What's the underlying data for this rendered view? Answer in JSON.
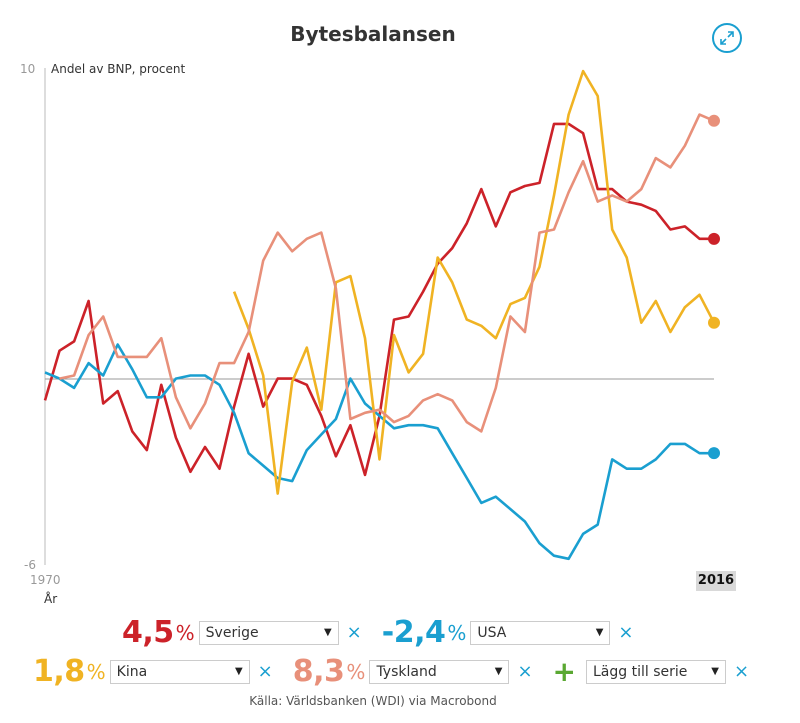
{
  "header": {
    "title": "Bytesbalansen",
    "expand_icon": "expand-arrows-icon"
  },
  "chart_data": {
    "type": "line",
    "title": "Bytesbalansen",
    "ylabel": "Andel av BNP, procent",
    "xlabel": "År",
    "ylim": [
      -6,
      10
    ],
    "xlim": [
      1970,
      2016
    ],
    "y_tick_labels": [
      "10",
      "-6"
    ],
    "x_tick_labels": [
      "1970",
      "2016"
    ],
    "x": [
      1970,
      1971,
      1972,
      1973,
      1974,
      1975,
      1976,
      1977,
      1978,
      1979,
      1980,
      1981,
      1982,
      1983,
      1984,
      1985,
      1986,
      1987,
      1988,
      1989,
      1990,
      1991,
      1992,
      1993,
      1994,
      1995,
      1996,
      1997,
      1998,
      1999,
      2000,
      2001,
      2002,
      2003,
      2004,
      2005,
      2006,
      2007,
      2008,
      2009,
      2010,
      2011,
      2012,
      2013,
      2014,
      2015,
      2016
    ],
    "series": [
      {
        "name": "Sverige",
        "color": "#cc2229",
        "values": [
          -0.7,
          0.9,
          1.2,
          2.5,
          -0.8,
          -0.4,
          -1.7,
          -2.3,
          -0.2,
          -1.9,
          -3.0,
          -2.2,
          -2.9,
          -0.9,
          0.8,
          -0.9,
          0.0,
          0.0,
          -0.2,
          -1.2,
          -2.5,
          -1.5,
          -3.1,
          -1.2,
          1.9,
          2.0,
          2.8,
          3.7,
          4.2,
          5.0,
          6.1,
          4.9,
          6.0,
          6.2,
          6.3,
          8.2,
          8.2,
          7.9,
          6.1,
          6.1,
          5.7,
          5.6,
          5.4,
          4.8,
          4.9,
          4.5,
          4.5
        ]
      },
      {
        "name": "USA",
        "color": "#1a9fd0",
        "values": [
          0.2,
          0.0,
          -0.3,
          0.5,
          0.1,
          1.1,
          0.3,
          -0.6,
          -0.6,
          0.0,
          0.1,
          0.1,
          -0.2,
          -1.1,
          -2.4,
          -2.8,
          -3.2,
          -3.3,
          -2.3,
          -1.8,
          -1.3,
          0.0,
          -0.8,
          -1.2,
          -1.6,
          -1.5,
          -1.5,
          -1.6,
          -2.4,
          -3.2,
          -4.0,
          -3.8,
          -4.2,
          -4.6,
          -5.3,
          -5.7,
          -5.8,
          -5.0,
          -4.7,
          -2.6,
          -2.9,
          -2.9,
          -2.6,
          -2.1,
          -2.1,
          -2.4,
          -2.4
        ]
      },
      {
        "name": "Kina",
        "color": "#f0b323",
        "values": [
          null,
          null,
          null,
          null,
          null,
          null,
          null,
          null,
          null,
          null,
          null,
          null,
          null,
          2.8,
          1.6,
          0.1,
          -3.7,
          -0.1,
          1.0,
          -1.0,
          3.1,
          3.3,
          1.3,
          -2.6,
          1.4,
          0.2,
          0.8,
          3.9,
          3.1,
          1.9,
          1.7,
          1.3,
          2.4,
          2.6,
          3.6,
          5.9,
          8.5,
          9.9,
          9.1,
          4.8,
          3.9,
          1.8,
          2.5,
          1.5,
          2.3,
          2.7,
          1.8
        ]
      },
      {
        "name": "Tyskland",
        "color": "#e8907a",
        "values": [
          null,
          0.0,
          0.1,
          1.4,
          2.0,
          0.7,
          0.7,
          0.7,
          1.3,
          -0.6,
          -1.6,
          -0.8,
          0.5,
          0.5,
          1.5,
          3.8,
          4.7,
          4.1,
          4.5,
          4.7,
          2.9,
          -1.3,
          -1.1,
          -1.0,
          -1.4,
          -1.2,
          -0.7,
          -0.5,
          -0.7,
          -1.4,
          -1.7,
          -0.3,
          2.0,
          1.5,
          4.7,
          4.8,
          6.0,
          7.0,
          5.7,
          5.9,
          5.7,
          6.1,
          7.1,
          6.8,
          7.5,
          8.5,
          8.3
        ]
      }
    ]
  },
  "legend": {
    "rows": [
      [
        {
          "value": "4,5",
          "unit": "%",
          "country": "Sverige",
          "color": "#cc2229",
          "arrow": "▼",
          "remove": "×"
        },
        {
          "value": "-2,4",
          "unit": "%",
          "country": "USA",
          "color": "#1a9fd0",
          "arrow": "▼",
          "remove": "×"
        }
      ],
      [
        {
          "value": "1,8",
          "unit": "%",
          "country": "Kina",
          "color": "#f0b323",
          "arrow": "▼",
          "remove": "×"
        },
        {
          "value": "8,3",
          "unit": "%",
          "country": "Tyskland",
          "color": "#e8907a",
          "arrow": "▼",
          "remove": "×"
        }
      ]
    ],
    "add_series": {
      "plus": "+",
      "label": "Lägg till serie",
      "arrow": "▼",
      "remove": "×"
    }
  },
  "source": "Källa: Världsbanken (WDI) via Macrobond"
}
